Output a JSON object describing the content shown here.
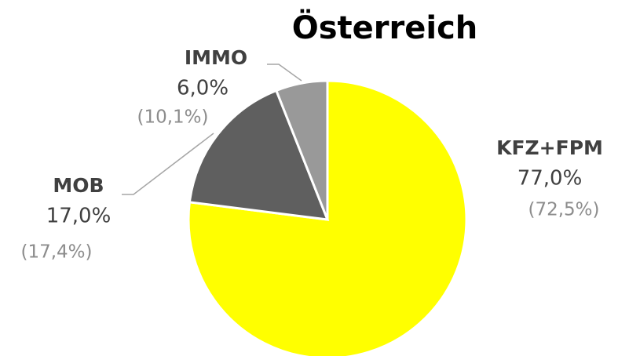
{
  "chart_data": {
    "type": "pie",
    "title": "Österreich",
    "categories": [
      "KFZ+FPM",
      "MOB",
      "IMMO"
    ],
    "values": [
      77.0,
      17.0,
      6.0
    ],
    "value_labels": [
      "77,0%",
      "17,0%",
      "6,0%"
    ],
    "comparison_labels": [
      "(72,5%)",
      "(17,4%)",
      "(10,1%)"
    ],
    "colors": [
      "#ffff00",
      "#5f5f5f",
      "#999999"
    ]
  }
}
